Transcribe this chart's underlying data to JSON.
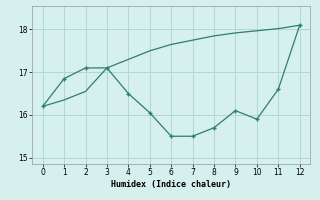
{
  "xlabel": "Humidex (Indice chaleur)",
  "line1_x": [
    0,
    1,
    2,
    3,
    4,
    5,
    6,
    7,
    8,
    9,
    10,
    11,
    12
  ],
  "line1_y": [
    16.2,
    16.85,
    17.1,
    17.1,
    16.5,
    16.05,
    15.5,
    15.5,
    15.7,
    16.1,
    15.9,
    16.6,
    18.1
  ],
  "line2_x": [
    0,
    1,
    2,
    3,
    4,
    5,
    6,
    7,
    8,
    9,
    10,
    11,
    12
  ],
  "line2_y": [
    16.2,
    16.35,
    16.55,
    17.1,
    17.3,
    17.5,
    17.65,
    17.75,
    17.85,
    17.92,
    17.97,
    18.02,
    18.1
  ],
  "line_color": "#2e7d71",
  "bg_color": "#d6f0ee",
  "grid_color": "#b0d8d4",
  "ylim": [
    14.85,
    18.55
  ],
  "xlim": [
    -0.5,
    12.5
  ],
  "yticks": [
    15,
    16,
    17,
    18
  ],
  "xticks": [
    0,
    1,
    2,
    3,
    4,
    5,
    6,
    7,
    8,
    9,
    10,
    11,
    12
  ]
}
